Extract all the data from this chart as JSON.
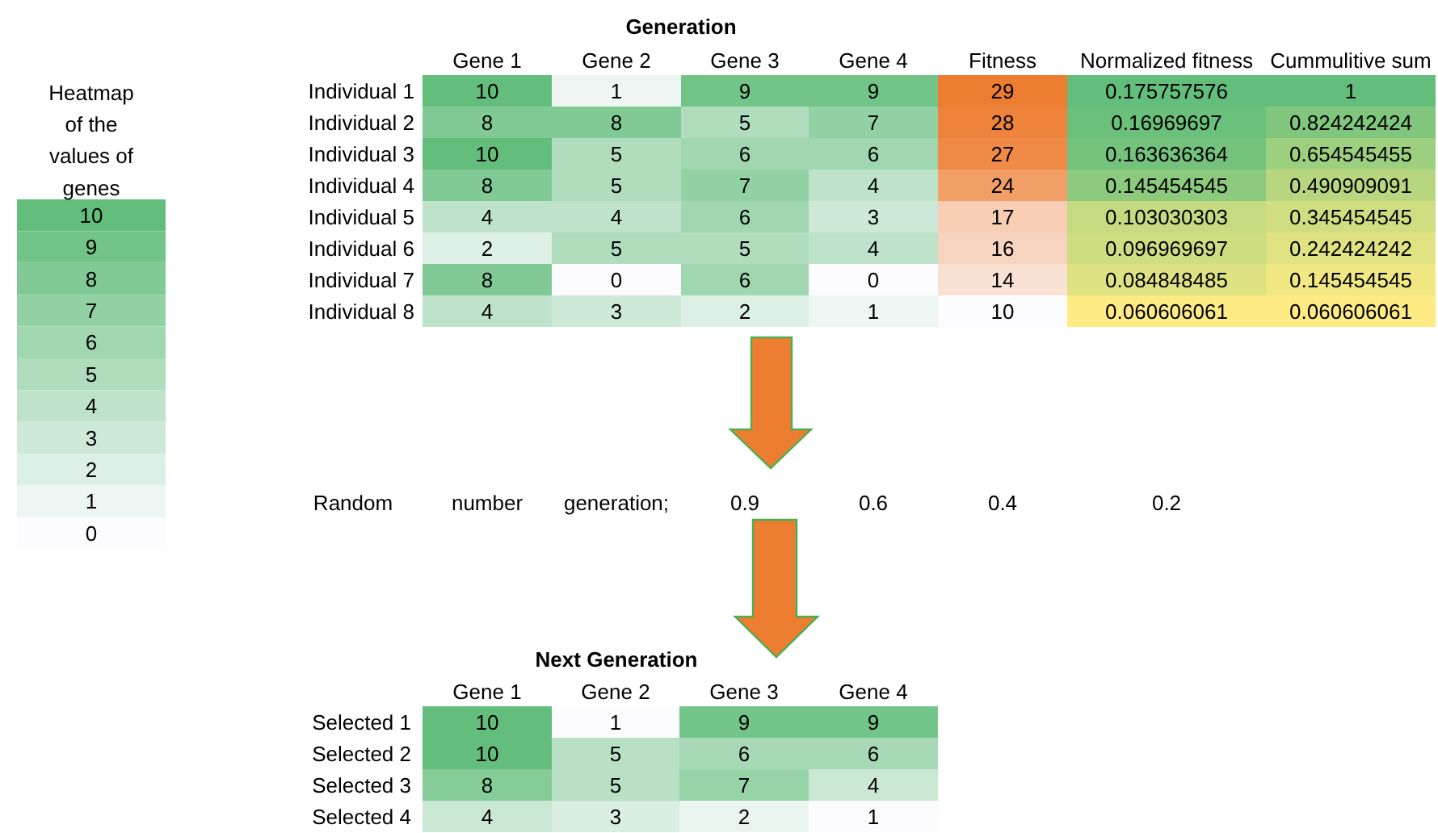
{
  "chart_data": [
    {
      "type": "heatmap",
      "title": "Heatmap of the values of genes",
      "categories": [
        null
      ],
      "y_categories": [
        null,
        null,
        null,
        null,
        null,
        null,
        null,
        null,
        null,
        null,
        null
      ],
      "data_labels": true,
      "cells": [
        [
          10
        ],
        [
          9
        ],
        [
          8
        ],
        [
          7
        ],
        [
          6
        ],
        [
          5
        ],
        [
          4
        ],
        [
          3
        ],
        [
          2
        ],
        [
          1
        ],
        [
          0
        ]
      ],
      "colors": [
        [
          "#63be7b"
        ],
        [
          "#72c488"
        ],
        [
          "#82ca95"
        ],
        [
          "#91d1a3"
        ],
        [
          "#a0d7b0"
        ],
        [
          "#b0ddbd"
        ],
        [
          "#bfe3ca"
        ],
        [
          "#cee9d7"
        ],
        [
          "#ddf0e5"
        ],
        [
          "#edf6f2"
        ],
        [
          "#fcfcff"
        ]
      ]
    },
    {
      "type": "heatmap",
      "title": "Generation",
      "categories": [
        "Gene 1",
        "Gene 2",
        "Gene 3",
        "Gene 4",
        "Fitness",
        "Normalized fitness",
        "Cummulitive sum"
      ],
      "y_categories": [
        "Individual 1",
        "Individual 2",
        "Individual 3",
        "Individual 4",
        "Individual 5",
        "Individual 6",
        "Individual 7",
        "Individual 8"
      ],
      "data_labels": true,
      "cells": [
        [
          10,
          1,
          9,
          9,
          29,
          0.175757576,
          1
        ],
        [
          8,
          8,
          5,
          7,
          28,
          0.16969697,
          0.824242424
        ],
        [
          10,
          5,
          6,
          6,
          27,
          0.163636364,
          0.654545455
        ],
        [
          8,
          5,
          7,
          4,
          24,
          0.145454545,
          0.490909091
        ],
        [
          4,
          4,
          6,
          3,
          17,
          0.103030303,
          0.345454545
        ],
        [
          2,
          5,
          5,
          4,
          16,
          0.096969697,
          0.242424242
        ],
        [
          8,
          0,
          6,
          0,
          14,
          0.084848485,
          0.145454545
        ],
        [
          4,
          3,
          2,
          1,
          10,
          0.060606061,
          0.060606061
        ]
      ],
      "colors": [
        [
          "#63be7b",
          "#edf6f2",
          "#72c488",
          "#72c488",
          "#ed7d31",
          "#63be7b",
          "#63be7b"
        ],
        [
          "#82ca95",
          "#82ca95",
          "#b0ddbd",
          "#91d1a3",
          "#ee843c",
          "#6bc07c",
          "#80c67d"
        ],
        [
          "#63be7b",
          "#b0ddbd",
          "#a0d7b0",
          "#a0d7b0",
          "#ef8a47",
          "#73c37c",
          "#9ccf7e"
        ],
        [
          "#82ca95",
          "#b0ddbd",
          "#91d1a3",
          "#bfe3ca",
          "#f19e67",
          "#8cca7d",
          "#b8d680"
        ],
        [
          "#bfe3ca",
          "#bfe3ca",
          "#a0d7b0",
          "#cee9d7",
          "#f7cdb3",
          "#c6da81",
          "#d0dd81"
        ],
        [
          "#ddf0e5",
          "#b0ddbd",
          "#b0ddbd",
          "#bfe3ca",
          "#f7d4be",
          "#cedd81",
          "#e1e282"
        ],
        [
          "#82ca95",
          "#fcfcff",
          "#a0d7b0",
          "#fcfcff",
          "#f9e1d4",
          "#dee282",
          "#f1e783"
        ],
        [
          "#bfe3ca",
          "#cee9d7",
          "#ddf0e5",
          "#edf6f2",
          "#fcfcff",
          "#ffeb84",
          "#ffeb84"
        ]
      ],
      "annotations": [
        "Random",
        "number",
        "generation;",
        "0.9",
        "0.6",
        "0.4",
        "0.2"
      ]
    },
    {
      "type": "heatmap",
      "title": "Next Generation",
      "categories": [
        "Gene 1",
        "Gene 2",
        "Gene 3",
        "Gene 4"
      ],
      "y_categories": [
        "Selected 1",
        "Selected 2",
        "Selected 3",
        "Selected 4"
      ],
      "data_labels": true,
      "cells": [
        [
          10,
          1,
          9,
          9
        ],
        [
          10,
          5,
          6,
          6
        ],
        [
          8,
          5,
          7,
          4
        ],
        [
          4,
          3,
          2,
          1
        ]
      ],
      "colors": [
        [
          "#63be7b",
          "#fcfcff",
          "#74c58a",
          "#74c58a"
        ],
        [
          "#63be7b",
          "#b8e0c4",
          "#a7d9b6",
          "#a7d9b6"
        ],
        [
          "#85cc98",
          "#b8e0c4",
          "#96d3a7",
          "#c9e7d3"
        ],
        [
          "#c9e7d3",
          "#daeee2",
          "#ebf5f0",
          "#fcfcff"
        ]
      ]
    }
  ]
}
